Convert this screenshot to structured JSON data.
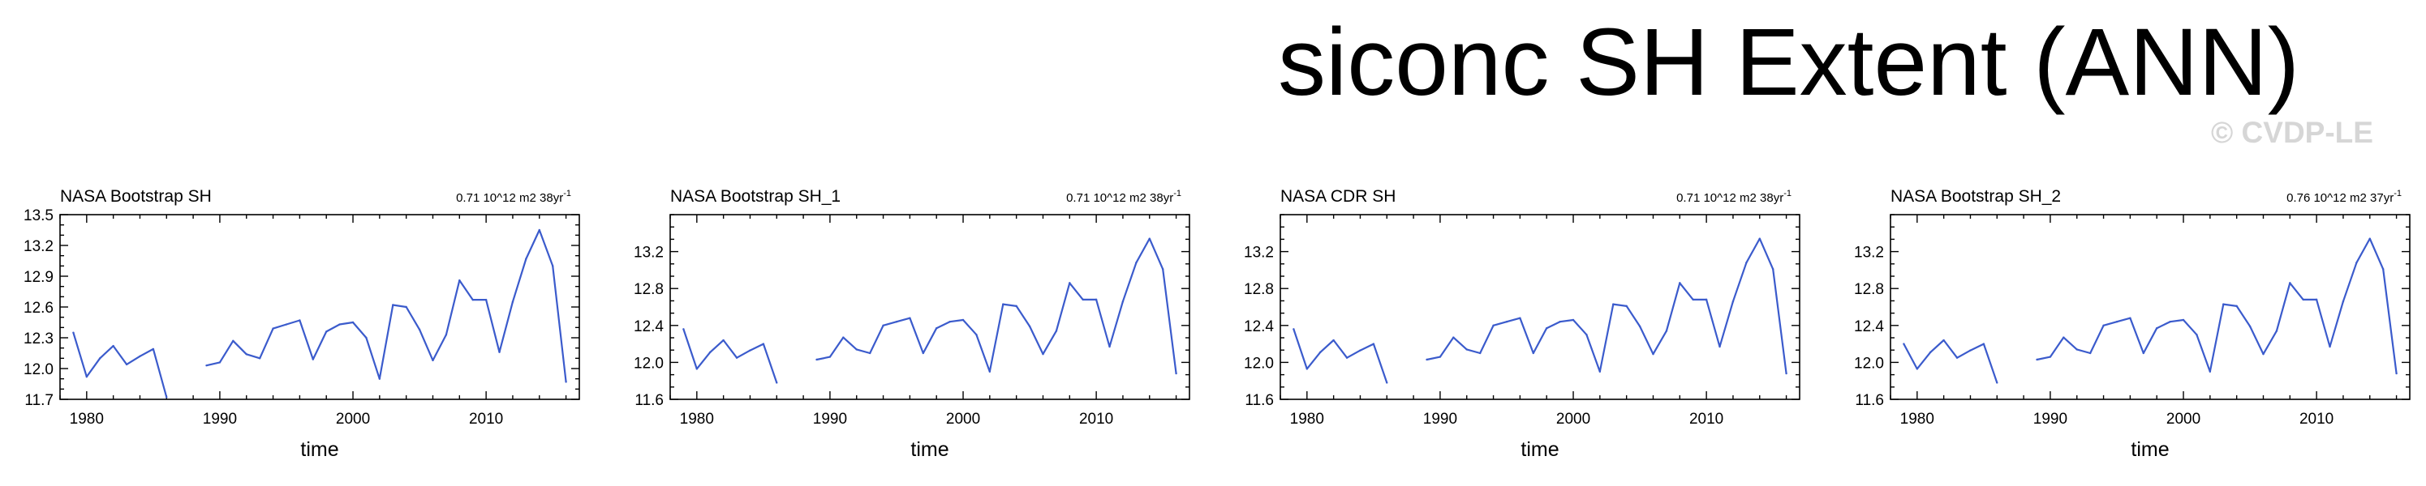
{
  "page": {
    "title": "siconc SH Extent (ANN)",
    "watermark": "© CVDP-LE"
  },
  "colors": {
    "line": "#3b5bcc",
    "axis": "#000000"
  },
  "chart_data": [
    {
      "type": "line",
      "title": "NASA Bootstrap SH",
      "trend_label": "0.71 10^12 m2 38yr",
      "trend_sup": "-1",
      "xlabel": "time",
      "ylabel": "",
      "xlim": [
        1978,
        2017
      ],
      "ylim": [
        11.7,
        13.5
      ],
      "yticks": [
        11.7,
        12.0,
        12.3,
        12.6,
        12.9,
        13.2,
        13.5
      ],
      "yticklabels": [
        "11.7",
        "12.0",
        "12.3",
        "12.6",
        "12.9",
        "13.2",
        "13.5"
      ],
      "xticks": [
        1980,
        1990,
        2000,
        2010
      ],
      "xticklabels": [
        "1980",
        "1990",
        "2000",
        "2010"
      ],
      "series": [
        {
          "name": "NASA Bootstrap SH",
          "x": [
            1979,
            1980,
            1981,
            1982,
            1983,
            1984,
            1985,
            1986,
            1987,
            1988,
            1989,
            1990,
            1991,
            1992,
            1993,
            1994,
            1995,
            1996,
            1997,
            1998,
            1999,
            2000,
            2001,
            2002,
            2003,
            2004,
            2005,
            2006,
            2007,
            2008,
            2009,
            2010,
            2011,
            2012,
            2013,
            2014,
            2015,
            2016
          ],
          "y": [
            12.35,
            11.92,
            12.1,
            12.22,
            12.04,
            12.12,
            12.19,
            11.72,
            null,
            null,
            12.03,
            12.06,
            12.27,
            12.14,
            12.1,
            12.39,
            12.43,
            12.47,
            12.09,
            12.36,
            12.43,
            12.45,
            12.3,
            11.9,
            12.62,
            12.6,
            12.38,
            12.08,
            12.33,
            12.86,
            12.67,
            12.67,
            12.16,
            12.65,
            13.07,
            13.35,
            13.0,
            11.87
          ]
        }
      ]
    },
    {
      "type": "line",
      "title": "NASA Bootstrap SH_1",
      "trend_label": "0.71 10^12 m2 38yr",
      "trend_sup": "-1",
      "xlabel": "time",
      "ylabel": "",
      "xlim": [
        1978,
        2017
      ],
      "ylim": [
        11.6,
        13.6
      ],
      "yticks": [
        11.6,
        12.0,
        12.4,
        12.8,
        13.2
      ],
      "yticklabels": [
        "11.6",
        "12.0",
        "12.4",
        "12.8",
        "13.2"
      ],
      "xticks": [
        1980,
        1990,
        2000,
        2010
      ],
      "xticklabels": [
        "1980",
        "1990",
        "2000",
        "2010"
      ],
      "series": [
        {
          "name": "NASA Bootstrap SH_1",
          "x": [
            1979,
            1980,
            1981,
            1982,
            1983,
            1984,
            1985,
            1986,
            1987,
            1988,
            1989,
            1990,
            1991,
            1992,
            1993,
            1994,
            1995,
            1996,
            1997,
            1998,
            1999,
            2000,
            2001,
            2002,
            2003,
            2004,
            2005,
            2006,
            2007,
            2008,
            2009,
            2010,
            2011,
            2012,
            2013,
            2014,
            2015,
            2016
          ],
          "y": [
            12.36,
            11.93,
            12.11,
            12.24,
            12.05,
            12.13,
            12.2,
            11.78,
            null,
            null,
            12.03,
            12.06,
            12.27,
            12.14,
            12.1,
            12.4,
            12.44,
            12.48,
            12.1,
            12.37,
            12.44,
            12.46,
            12.3,
            11.9,
            12.63,
            12.61,
            12.39,
            12.09,
            12.34,
            12.86,
            12.68,
            12.68,
            12.17,
            12.66,
            13.08,
            13.34,
            13.01,
            11.88
          ]
        }
      ]
    },
    {
      "type": "line",
      "title": "NASA CDR SH",
      "trend_label": "0.71 10^12 m2 38yr",
      "trend_sup": "-1",
      "xlabel": "time",
      "ylabel": "",
      "xlim": [
        1978,
        2017
      ],
      "ylim": [
        11.6,
        13.6
      ],
      "yticks": [
        11.6,
        12.0,
        12.4,
        12.8,
        13.2
      ],
      "yticklabels": [
        "11.6",
        "12.0",
        "12.4",
        "12.8",
        "13.2"
      ],
      "xticks": [
        1980,
        1990,
        2000,
        2010
      ],
      "xticklabels": [
        "1980",
        "1990",
        "2000",
        "2010"
      ],
      "series": [
        {
          "name": "NASA CDR SH",
          "x": [
            1979,
            1980,
            1981,
            1982,
            1983,
            1984,
            1985,
            1986,
            1987,
            1988,
            1989,
            1990,
            1991,
            1992,
            1993,
            1994,
            1995,
            1996,
            1997,
            1998,
            1999,
            2000,
            2001,
            2002,
            2003,
            2004,
            2005,
            2006,
            2007,
            2008,
            2009,
            2010,
            2011,
            2012,
            2013,
            2014,
            2015,
            2016
          ],
          "y": [
            12.36,
            11.93,
            12.11,
            12.24,
            12.05,
            12.13,
            12.2,
            11.78,
            null,
            null,
            12.03,
            12.06,
            12.27,
            12.14,
            12.1,
            12.4,
            12.44,
            12.48,
            12.1,
            12.37,
            12.44,
            12.46,
            12.3,
            11.9,
            12.63,
            12.61,
            12.39,
            12.09,
            12.34,
            12.86,
            12.68,
            12.68,
            12.17,
            12.66,
            13.08,
            13.34,
            13.01,
            11.88
          ]
        }
      ]
    },
    {
      "type": "line",
      "title": "NASA Bootstrap SH_2",
      "trend_label": "0.76 10^12 m2 37yr",
      "trend_sup": "-1",
      "xlabel": "time",
      "ylabel": "",
      "xlim": [
        1978,
        2017
      ],
      "ylim": [
        11.6,
        13.6
      ],
      "yticks": [
        11.6,
        12.0,
        12.4,
        12.8,
        13.2
      ],
      "yticklabels": [
        "11.6",
        "12.0",
        "12.4",
        "12.8",
        "13.2"
      ],
      "xticks": [
        1980,
        1990,
        2000,
        2010
      ],
      "xticklabels": [
        "1980",
        "1990",
        "2000",
        "2010"
      ],
      "series": [
        {
          "name": "NASA Bootstrap SH_2",
          "x": [
            1979,
            1980,
            1981,
            1982,
            1983,
            1984,
            1985,
            1986,
            1987,
            1988,
            1989,
            1990,
            1991,
            1992,
            1993,
            1994,
            1995,
            1996,
            1997,
            1998,
            1999,
            2000,
            2001,
            2002,
            2003,
            2004,
            2005,
            2006,
            2007,
            2008,
            2009,
            2010,
            2011,
            2012,
            2013,
            2014,
            2015,
            2016
          ],
          "y": [
            12.2,
            11.93,
            12.11,
            12.24,
            12.05,
            12.13,
            12.2,
            11.78,
            null,
            null,
            12.03,
            12.06,
            12.27,
            12.14,
            12.1,
            12.4,
            12.44,
            12.48,
            12.1,
            12.37,
            12.44,
            12.46,
            12.3,
            11.9,
            12.63,
            12.61,
            12.39,
            12.09,
            12.34,
            12.86,
            12.68,
            12.68,
            12.17,
            12.66,
            13.08,
            13.34,
            13.01,
            11.88
          ]
        }
      ]
    }
  ]
}
